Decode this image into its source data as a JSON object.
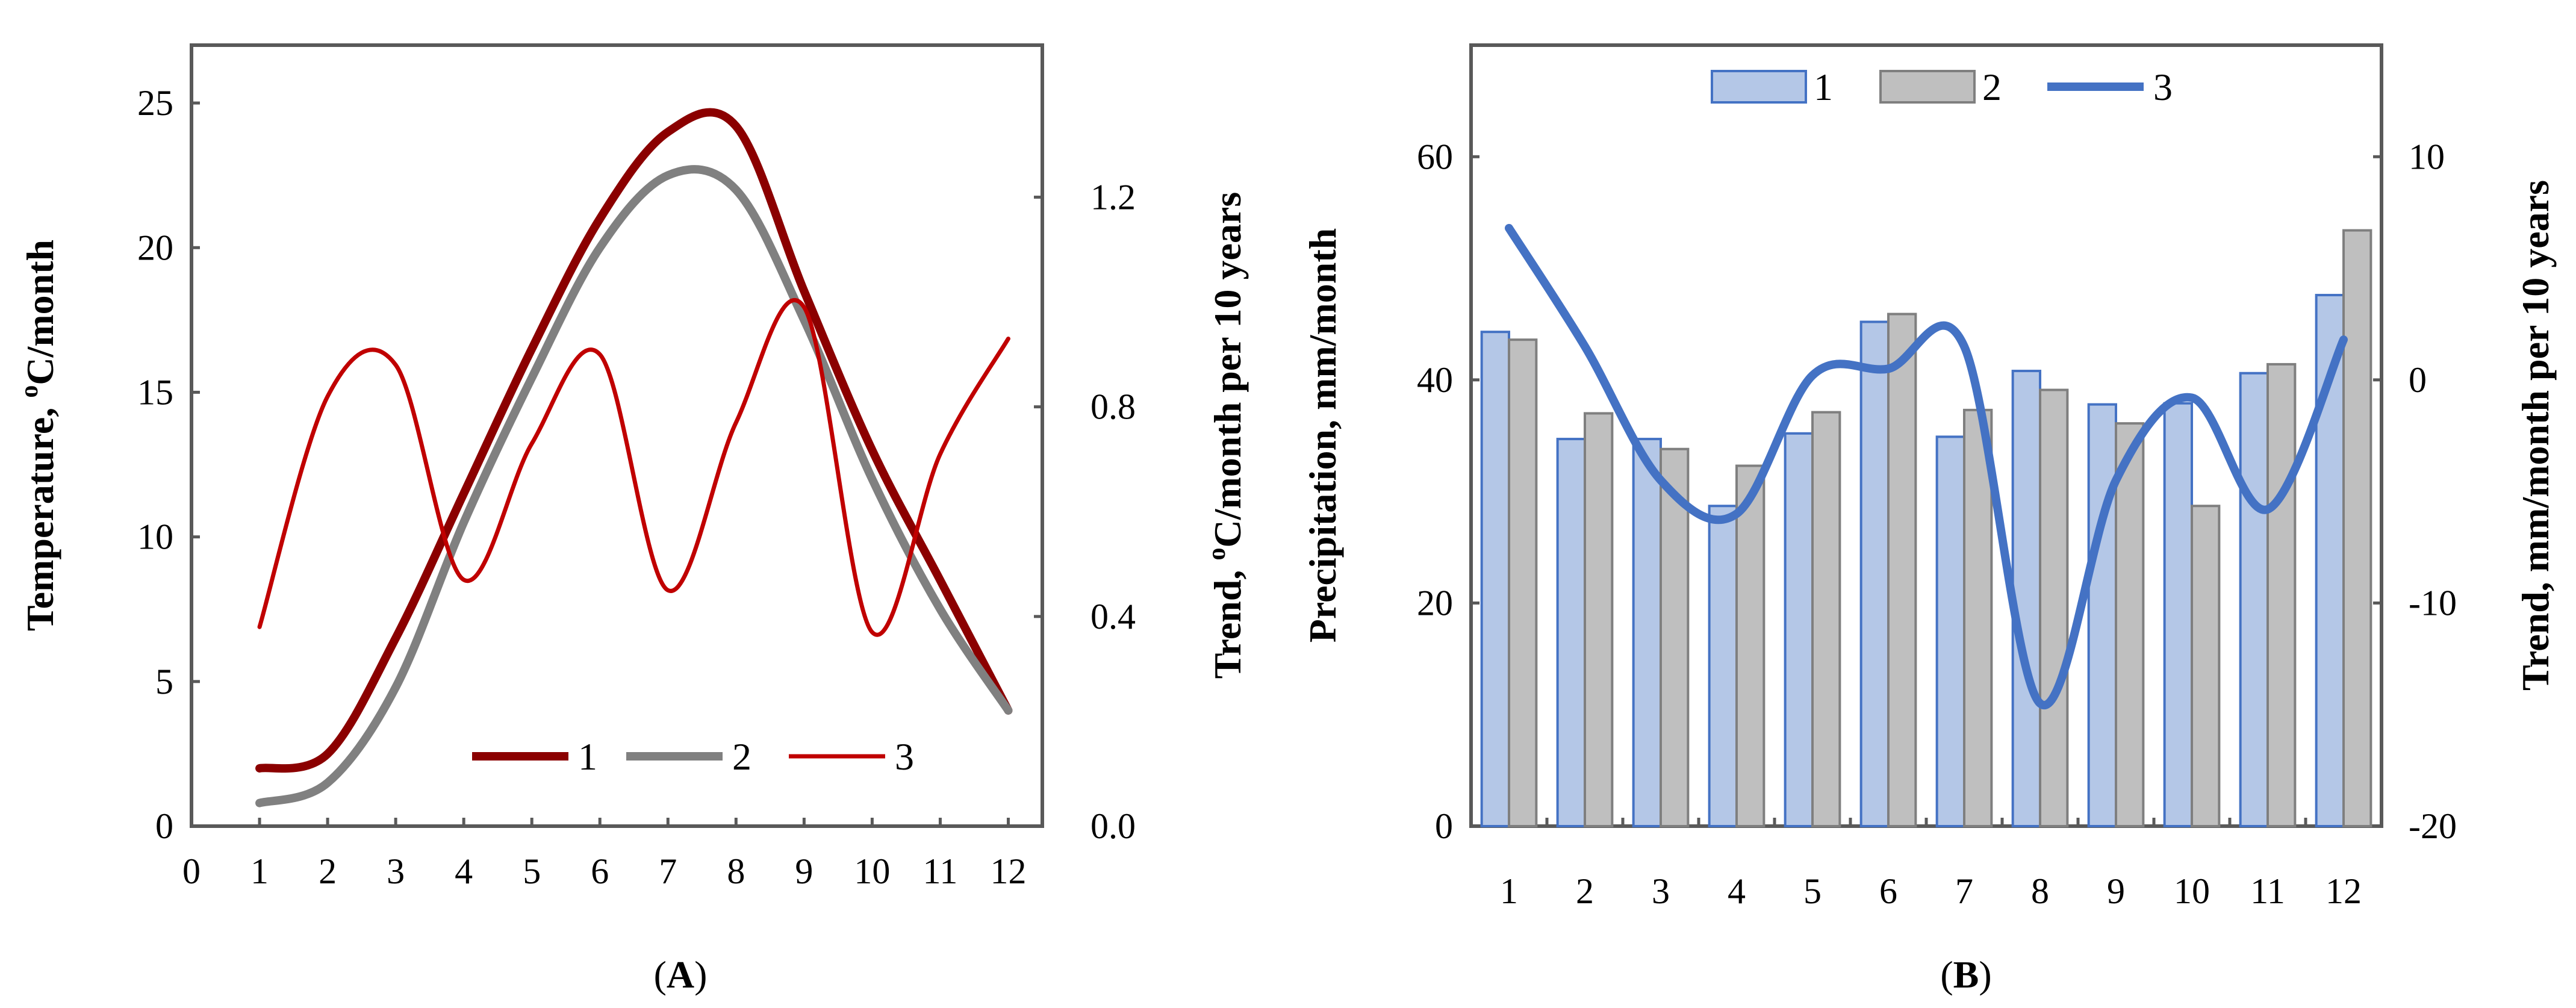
{
  "chart_data": [
    {
      "id": "A",
      "type": "line",
      "caption_paren_open": "(",
      "caption_letter": "A",
      "caption_paren_close": ")",
      "xlabel": "",
      "ylabel_prefix": "Temperature, ",
      "ylabel_sup": "o",
      "ylabel_suffix": "C/month",
      "y2label_prefix": "Trend, ",
      "y2label_sup": "o",
      "y2label_suffix": "C/month per 10 years",
      "xlim": [
        0,
        12.5
      ],
      "ylim": [
        0,
        27
      ],
      "y2lim": [
        0,
        1.49
      ],
      "x_ticks": [
        "0",
        "1",
        "2",
        "3",
        "4",
        "5",
        "6",
        "7",
        "8",
        "9",
        "10",
        "11",
        "12"
      ],
      "y_ticks": [
        "0",
        "5",
        "10",
        "15",
        "20",
        "25"
      ],
      "y2_ticks": [
        "0.0",
        "0.4",
        "0.8",
        "1.2"
      ],
      "x": [
        1,
        2,
        3,
        4,
        5,
        6,
        7,
        8,
        9,
        10,
        11,
        12
      ],
      "series": [
        {
          "name": "1",
          "axis": "left",
          "color": "#8b0000",
          "width": 14,
          "values": [
            2.0,
            2.5,
            6.5,
            11.5,
            16.5,
            21.0,
            24.0,
            24.2,
            18.5,
            13.0,
            8.5,
            4.0
          ]
        },
        {
          "name": "2",
          "axis": "left",
          "color": "#808080",
          "width": 14,
          "values": [
            0.8,
            1.5,
            4.8,
            10.5,
            15.5,
            20.0,
            22.5,
            22.0,
            17.5,
            12.0,
            7.5,
            4.0
          ]
        },
        {
          "name": "3",
          "axis": "right",
          "color": "#c00000",
          "width": 7,
          "values": [
            0.38,
            0.82,
            0.88,
            0.47,
            0.73,
            0.9,
            0.45,
            0.77,
            0.99,
            0.37,
            0.71,
            0.93
          ]
        }
      ],
      "legend": [
        "1",
        "2",
        "3"
      ],
      "legend_position": "bottom-center"
    },
    {
      "id": "B",
      "type": "bar",
      "caption_paren_open": "(",
      "caption_letter": "B",
      "caption_paren_close": ")",
      "xlabel": "",
      "ylabel": "Precipitation, mm/month",
      "y2label": "Trend, mm/month per 10 years",
      "ylim": [
        0,
        70
      ],
      "y2lim": [
        -20,
        15
      ],
      "categories": [
        "1",
        "2",
        "3",
        "4",
        "5",
        "6",
        "7",
        "8",
        "9",
        "10",
        "11",
        "12"
      ],
      "y_ticks": [
        "0",
        "20",
        "40",
        "60"
      ],
      "y2_ticks": [
        "-20",
        "-10",
        "0",
        "10"
      ],
      "series": [
        {
          "name": "1",
          "kind": "bar",
          "axis": "left",
          "fill": "#b4c7e7",
          "stroke": "#4472c4",
          "values": [
            44.3,
            34.7,
            34.7,
            28.7,
            35.2,
            45.2,
            34.9,
            40.8,
            37.8,
            37.9,
            40.6,
            47.6
          ]
        },
        {
          "name": "2",
          "kind": "bar",
          "axis": "left",
          "fill": "#bfbfbf",
          "stroke": "#7f7f7f",
          "values": [
            43.6,
            37.0,
            33.8,
            32.3,
            37.1,
            45.9,
            37.3,
            39.1,
            36.1,
            28.7,
            41.4,
            53.4
          ]
        },
        {
          "name": "3",
          "kind": "line",
          "axis": "right",
          "color": "#4472c4",
          "width": 14,
          "values": [
            6.8,
            1.5,
            -4.5,
            -6.0,
            0.2,
            0.5,
            1.5,
            -14.5,
            -4.5,
            -0.8,
            -5.8,
            1.8
          ]
        }
      ],
      "legend": [
        "1",
        "2",
        "3"
      ],
      "legend_position": "top-center"
    }
  ]
}
